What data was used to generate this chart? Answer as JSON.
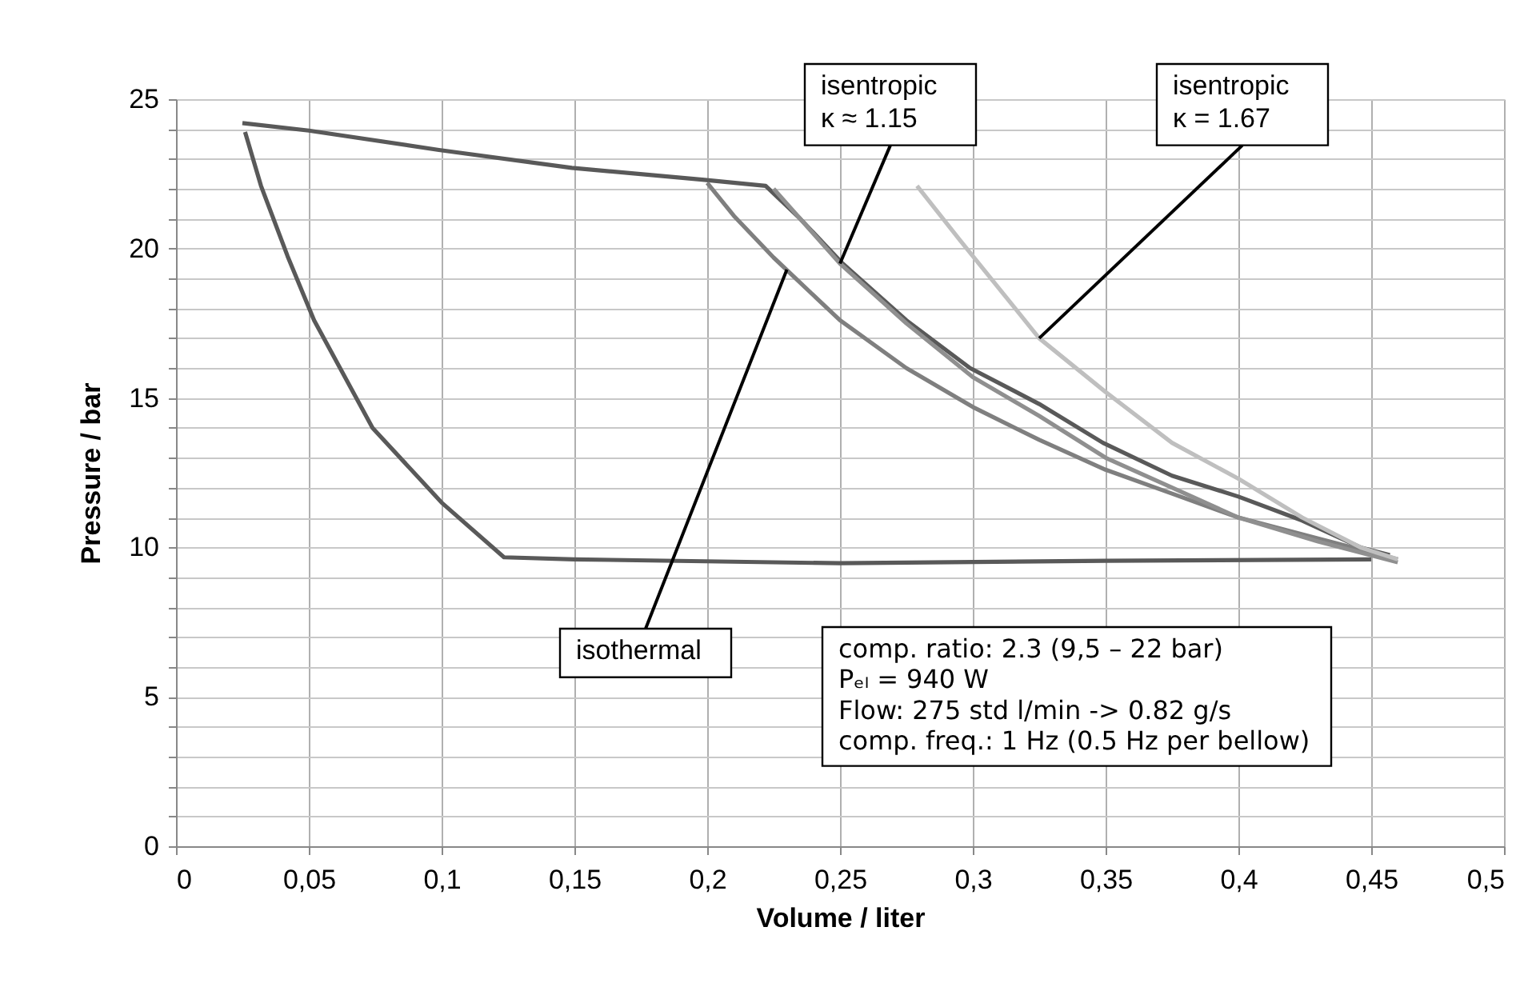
{
  "chart_data": {
    "type": "line",
    "xlabel": "Volume / liter",
    "ylabel": "Pressure / bar",
    "xlim": [
      0,
      0.5
    ],
    "ylim": [
      0,
      25
    ],
    "xticks": [
      0,
      {
        "value": 0.05,
        "label": "0,05"
      },
      {
        "value": 0.1,
        "label": "0,1"
      },
      {
        "value": 0.15,
        "label": "0,15"
      },
      {
        "value": 0.2,
        "label": "0,2"
      },
      {
        "value": 0.25,
        "label": "0,25"
      },
      {
        "value": 0.3,
        "label": "0,3"
      },
      {
        "value": 0.35,
        "label": "0,35"
      },
      {
        "value": 0.4,
        "label": "0,4"
      },
      {
        "value": 0.45,
        "label": "0,45"
      },
      {
        "value": 0.5,
        "label": "0,5"
      }
    ],
    "yticks": [
      0,
      {
        "value": 1,
        "label": null
      },
      {
        "value": 2,
        "label": null
      },
      {
        "value": 3,
        "label": null
      },
      {
        "value": 4,
        "label": null
      },
      5,
      {
        "value": 6,
        "label": null
      },
      {
        "value": 7,
        "label": null
      },
      {
        "value": 8,
        "label": null
      },
      {
        "value": 9,
        "label": null
      },
      10,
      {
        "value": 11,
        "label": null
      },
      {
        "value": 12,
        "label": null
      },
      {
        "value": 13,
        "label": null
      },
      {
        "value": 14,
        "label": null
      },
      15,
      {
        "value": 16,
        "label": null
      },
      {
        "value": 17,
        "label": null
      },
      {
        "value": 18,
        "label": null
      },
      {
        "value": 19,
        "label": null
      },
      20,
      {
        "value": 21,
        "label": null
      },
      {
        "value": 22,
        "label": null
      },
      {
        "value": 23,
        "label": null
      },
      {
        "value": 24,
        "label": null
      },
      25
    ],
    "grid": true,
    "marker": "none",
    "line_style": "solid",
    "series": [
      {
        "color": "#595959",
        "x": [
          0.025,
          0.05,
          0.099,
          0.149,
          0.199,
          0.222,
          0.235,
          0.251,
          0.275,
          0.299,
          0.325,
          0.349,
          0.375,
          0.4,
          0.424,
          0.446,
          0.457
        ],
        "values": [
          24.2,
          23.95,
          23.3,
          22.7,
          22.3,
          22.1,
          21.0,
          19.5,
          17.6,
          16.0,
          14.8,
          13.5,
          12.4,
          11.7,
          10.9,
          10.0,
          9.74
        ]
      },
      {
        "color": "#595959",
        "x": [
          0.026,
          0.032,
          0.042,
          0.052,
          0.074,
          0.1,
          0.1235,
          0.15,
          0.25,
          0.35,
          0.45
        ],
        "values": [
          23.9,
          22.1,
          19.75,
          17.6,
          14.0,
          11.5,
          9.67,
          9.6,
          9.47,
          9.55,
          9.6
        ]
      },
      {
        "color": "#7f7f7f",
        "x": [
          0.2,
          0.21,
          0.225,
          0.25,
          0.275,
          0.3,
          0.325,
          0.35,
          0.375,
          0.4,
          0.43,
          0.46
        ],
        "values": [
          22.2,
          21.1,
          19.7,
          17.6,
          16.0,
          14.7,
          13.6,
          12.6,
          11.8,
          11.0,
          10.3,
          9.6
        ]
      },
      {
        "color": "#8f8f8f",
        "x": [
          0.225,
          0.25,
          0.275,
          0.3,
          0.325,
          0.35,
          0.375,
          0.4,
          0.43,
          0.46
        ],
        "values": [
          22.0,
          19.5,
          17.5,
          15.7,
          14.4,
          13.0,
          12.0,
          11.0,
          10.2,
          9.5
        ]
      },
      {
        "color": "#bfbfbf",
        "x": [
          0.279,
          0.295,
          0.325,
          0.35,
          0.375,
          0.4,
          0.424,
          0.446,
          0.46
        ],
        "values": [
          22.1,
          20.3,
          17.0,
          15.2,
          13.5,
          12.3,
          11.0,
          10.0,
          9.6
        ]
      }
    ],
    "annotations": [
      {
        "text": "isothermal",
        "x": 0.23,
        "y": 19.3
      },
      {
        "text": "isentropic\nκ ≈ 1.15",
        "x": 0.25,
        "y": 19.5
      },
      {
        "text": "isentropic\nκ = 1.67",
        "x": 0.325,
        "y": 17.0
      },
      "comp. ratio: 2.3 (9,5 – 22 bar)\nPₑₗ = 940 W\nFlow: 275 std l/min -> 0.82 g/s\ncomp. freq.: 1 Hz (0.5 Hz per bellow)"
    ]
  }
}
